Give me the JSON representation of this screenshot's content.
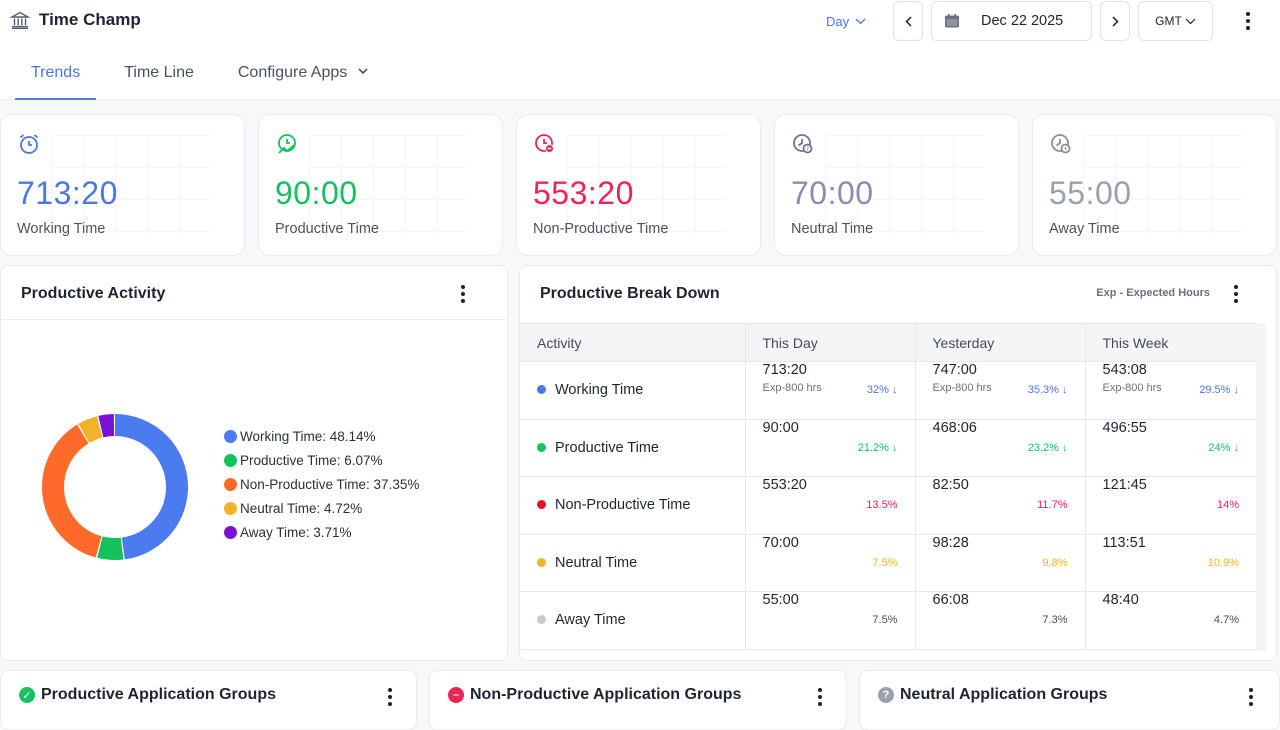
{
  "header": {
    "title": "Time Champ",
    "day_label": "Day",
    "date": "Dec 22 2025",
    "timezone": "GMT"
  },
  "tabs": [
    {
      "label": "Trends",
      "active": true
    },
    {
      "label": "Time Line",
      "active": false
    },
    {
      "label": "Configure Apps",
      "active": false
    }
  ],
  "cards": [
    {
      "value": "713:20",
      "label": "Working Time",
      "color": "#4a78e0"
    },
    {
      "value": "90:00",
      "label": "Productive Time",
      "color": "#15c15d"
    },
    {
      "value": "553:20",
      "label": "Non-Productive Time",
      "color": "#ee2358"
    },
    {
      "value": "70:00",
      "label": "Neutral Time",
      "color": "#8a8db0"
    },
    {
      "value": "55:00",
      "label": "Away Time",
      "color": "#9aa0ae"
    }
  ],
  "productive_activity": {
    "title": "Productive Activity",
    "legend": [
      {
        "label": "Working Time: 48.14%",
        "color": "#4a7cf0"
      },
      {
        "label": "Productive Time: 6.07%",
        "color": "#15c15d"
      },
      {
        "label": "Non-Productive Time: 37.35%",
        "color": "#ff6a2a"
      },
      {
        "label": "Neutral Time: 4.72%",
        "color": "#f2b32a"
      },
      {
        "label": "Away Time: 3.71%",
        "color": "#7a12d6"
      }
    ]
  },
  "chart_data": {
    "type": "pie",
    "categories": [
      "Working Time",
      "Productive Time",
      "Non-Productive Time",
      "Neutral Time",
      "Away Time"
    ],
    "values": [
      48.14,
      6.07,
      37.35,
      4.72,
      3.71
    ],
    "colors": [
      "#4a7cf0",
      "#15c15d",
      "#ff6a2a",
      "#f2b32a",
      "#7a12d6"
    ],
    "legend": "right"
  },
  "breakdown": {
    "title": "Productive Break Down",
    "note": "Exp - Expected Hours",
    "columns": [
      "Activity",
      "This Day",
      "Yesterday",
      "This Week"
    ],
    "rows": [
      {
        "activity": "Working Time",
        "dot": "#4a78e0",
        "cells": [
          {
            "value": "713:20",
            "sub": "Exp-800 hrs",
            "pct": "32% ↓",
            "pct_color": "#4a78e0"
          },
          {
            "value": "747:00",
            "sub": "Exp-800 hrs",
            "pct": "35.3% ↓",
            "pct_color": "#4a78e0"
          },
          {
            "value": "543:08",
            "sub": "Exp-800 hrs",
            "pct": "29.5% ↓",
            "pct_color": "#4a78e0"
          }
        ]
      },
      {
        "activity": "Productive Time",
        "dot": "#15c15d",
        "cells": [
          {
            "value": "90:00",
            "sub": "",
            "pct": "21.2% ↓",
            "pct_color": "#15c15d"
          },
          {
            "value": "468:06",
            "sub": "",
            "pct": "23.2% ↓",
            "pct_color": "#15c15d"
          },
          {
            "value": "496:55",
            "sub": "",
            "pct": "24% ↓",
            "pct_color": "#15c15d"
          }
        ]
      },
      {
        "activity": "Non-Productive Time",
        "dot": "#e5102a",
        "cells": [
          {
            "value": "553:20",
            "sub": "",
            "pct": "13.5%",
            "pct_color": "#ee2358"
          },
          {
            "value": "82:50",
            "sub": "",
            "pct": "11.7%",
            "pct_color": "#ee2358"
          },
          {
            "value": "121:45",
            "sub": "",
            "pct": "14%",
            "pct_color": "#ee2358"
          }
        ]
      },
      {
        "activity": "Neutral Time",
        "dot": "#f2b32a",
        "cells": [
          {
            "value": "70:00",
            "sub": "",
            "pct": "7.5%",
            "pct_color": "#f2b32a"
          },
          {
            "value": "98:28",
            "sub": "",
            "pct": "9.8%",
            "pct_color": "#f2b32a"
          },
          {
            "value": "113:51",
            "sub": "",
            "pct": "10.9%",
            "pct_color": "#f2b32a"
          }
        ]
      },
      {
        "activity": "Away Time",
        "dot": "#c7cad6",
        "cells": [
          {
            "value": "55:00",
            "sub": "",
            "pct": "7.5%",
            "pct_color": "#444a59"
          },
          {
            "value": "66:08",
            "sub": "",
            "pct": "7.3%",
            "pct_color": "#444a59"
          },
          {
            "value": "48:40",
            "sub": "",
            "pct": "4.7%",
            "pct_color": "#444a59"
          }
        ]
      }
    ]
  },
  "groups": [
    {
      "title": "Productive Application Groups",
      "icon": "check-circle-icon",
      "color": "#15c15d"
    },
    {
      "title": "Non-Productive Application Groups",
      "icon": "minus-circle-icon",
      "color": "#ee2358"
    },
    {
      "title": "Neutral Application Groups",
      "icon": "question-circle-icon",
      "color": "#9aa0ae"
    }
  ]
}
